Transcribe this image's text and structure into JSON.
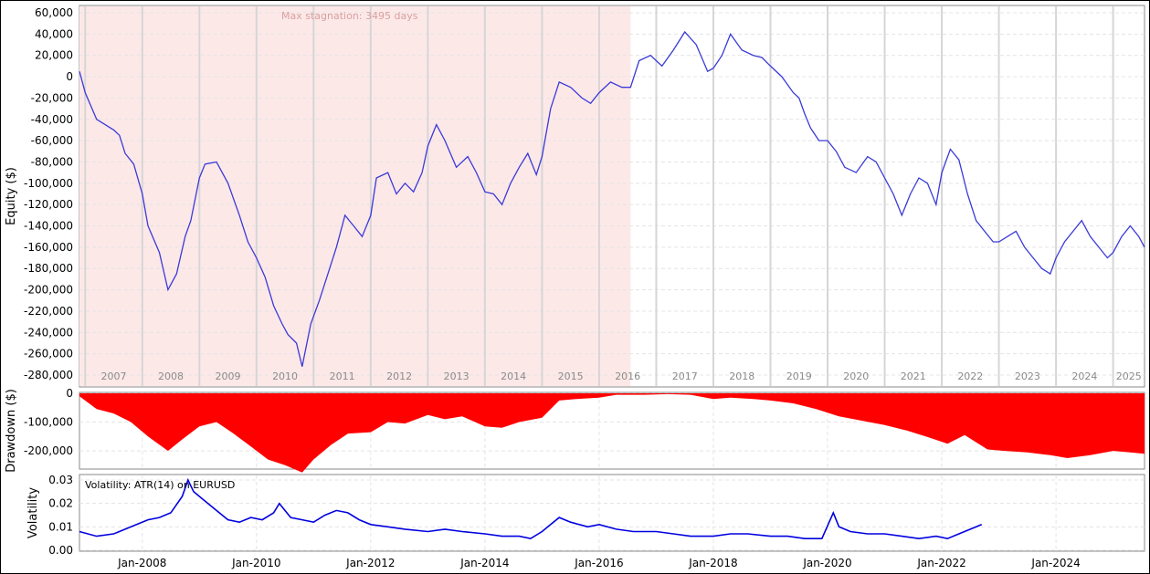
{
  "chart_data": [
    {
      "type": "line",
      "ylabel": "Equity ($)",
      "annotation": "Max stagnation: 3495 days",
      "stagnation": {
        "start": 2006.9,
        "end": 2016.55
      },
      "ylim": [
        -280000,
        60000
      ],
      "yticks": [
        60000,
        40000,
        20000,
        0,
        -20000,
        -40000,
        -60000,
        -80000,
        -100000,
        -120000,
        -140000,
        -160000,
        -180000,
        -200000,
        -220000,
        -240000,
        -260000,
        -280000
      ],
      "ytick_labels": [
        "60,000",
        "40,000",
        "20,000",
        "0",
        "-20,000",
        "-40,000",
        "-60,000",
        "-80,000",
        "-100,000",
        "-120,000",
        "-140,000",
        "-160,000",
        "-180,000",
        "-200,000",
        "-220,000",
        "-240,000",
        "-260,000",
        "-280,000"
      ],
      "year_labels": [
        "2007",
        "2008",
        "2009",
        "2010",
        "2011",
        "2012",
        "2013",
        "2014",
        "2015",
        "2016",
        "2017",
        "2018",
        "2019",
        "2020",
        "2021",
        "2022",
        "2023",
        "2024",
        "2025"
      ],
      "series": [
        {
          "color": "#3a3ad8",
          "x": [
            2006.9,
            2007.0,
            2007.2,
            2007.35,
            2007.5,
            2007.6,
            2007.7,
            2007.85,
            2008.0,
            2008.1,
            2008.3,
            2008.45,
            2008.6,
            2008.75,
            2008.85,
            2009.0,
            2009.1,
            2009.3,
            2009.5,
            2009.7,
            2009.85,
            2010.0,
            2010.15,
            2010.3,
            2010.45,
            2010.55,
            2010.7,
            2010.8,
            2010.95,
            2011.1,
            2011.25,
            2011.4,
            2011.55,
            2011.7,
            2011.85,
            2012.0,
            2012.1,
            2012.3,
            2012.45,
            2012.6,
            2012.75,
            2012.9,
            2013.0,
            2013.15,
            2013.3,
            2013.5,
            2013.7,
            2013.85,
            2014.0,
            2014.15,
            2014.3,
            2014.45,
            2014.6,
            2014.75,
            2014.9,
            2015.0,
            2015.15,
            2015.3,
            2015.5,
            2015.7,
            2015.85,
            2016.0,
            2016.2,
            2016.4,
            2016.55,
            2016.7,
            2016.9,
            2017.1,
            2017.3,
            2017.5,
            2017.7,
            2017.9,
            2018.0,
            2018.15,
            2018.3,
            2018.5,
            2018.7,
            2018.85,
            2019.0,
            2019.2,
            2019.4,
            2019.5,
            2019.6,
            2019.7,
            2019.85,
            2020.0,
            2020.15,
            2020.3,
            2020.5,
            2020.7,
            2020.85,
            2021.0,
            2021.15,
            2021.3,
            2021.45,
            2021.6,
            2021.75,
            2021.9,
            2022.0,
            2022.15,
            2022.3,
            2022.45,
            2022.6,
            2022.75,
            2022.9,
            2023.0,
            2023.15,
            2023.3,
            2023.45,
            2023.6,
            2023.75,
            2023.9,
            2024.0,
            2024.15,
            2024.3,
            2024.45,
            2024.6,
            2024.75,
            2024.9,
            2025.0,
            2025.15,
            2025.3,
            2025.45,
            2025.55
          ],
          "y": [
            5000,
            -15000,
            -40000,
            -45000,
            -50000,
            -55000,
            -72000,
            -82000,
            -110000,
            -140000,
            -165000,
            -200000,
            -185000,
            -150000,
            -135000,
            -95000,
            -82000,
            -80000,
            -100000,
            -130000,
            -155000,
            -170000,
            -188000,
            -215000,
            -232000,
            -242000,
            -250000,
            -272000,
            -232000,
            -210000,
            -185000,
            -160000,
            -130000,
            -140000,
            -150000,
            -130000,
            -95000,
            -90000,
            -110000,
            -100000,
            -108000,
            -90000,
            -65000,
            -45000,
            -60000,
            -85000,
            -75000,
            -90000,
            -108000,
            -110000,
            -120000,
            -100000,
            -85000,
            -72000,
            -92000,
            -75000,
            -30000,
            -5000,
            -10000,
            -20000,
            -25000,
            -15000,
            -5000,
            -10000,
            -10000,
            15000,
            20000,
            10000,
            25000,
            42000,
            30000,
            5000,
            8000,
            20000,
            40000,
            25000,
            20000,
            18000,
            10000,
            0,
            -15000,
            -20000,
            -35000,
            -48000,
            -60000,
            -60000,
            -70000,
            -85000,
            -90000,
            -75000,
            -80000,
            -95000,
            -110000,
            -130000,
            -110000,
            -95000,
            -100000,
            -120000,
            -90000,
            -68000,
            -78000,
            -110000,
            -135000,
            -145000,
            -155000,
            -155000,
            -150000,
            -145000,
            -160000,
            -170000,
            -180000,
            -185000,
            -170000,
            -155000,
            -145000,
            -135000,
            -150000,
            -160000,
            -170000,
            -165000,
            -150000,
            -140000,
            -150000,
            -160000
          ],
          "values_note": ""
        }
      ]
    },
    {
      "type": "area",
      "ylabel": "Drawdown ($)",
      "ylim": [
        -260000,
        0
      ],
      "yticks": [
        0,
        -100000,
        -200000
      ],
      "ytick_labels": [
        "0",
        "-100,000",
        "-200,000"
      ],
      "color": "#ff0000",
      "x": [
        2006.9,
        2007.2,
        2007.5,
        2007.8,
        2008.1,
        2008.45,
        2008.7,
        2009.0,
        2009.3,
        2009.6,
        2009.9,
        2010.2,
        2010.5,
        2010.8,
        2011.0,
        2011.3,
        2011.6,
        2012.0,
        2012.3,
        2012.6,
        2013.0,
        2013.3,
        2013.6,
        2014.0,
        2014.3,
        2014.6,
        2015.0,
        2015.3,
        2015.6,
        2016.0,
        2016.3,
        2016.55,
        2016.8,
        2017.2,
        2017.6,
        2018.0,
        2018.3,
        2018.7,
        2019.0,
        2019.4,
        2019.8,
        2020.2,
        2020.6,
        2021.0,
        2021.4,
        2021.8,
        2022.1,
        2022.4,
        2022.8,
        2023.1,
        2023.5,
        2023.9,
        2024.2,
        2024.6,
        2025.0,
        2025.3,
        2025.55
      ],
      "y": [
        -10000,
        -55000,
        -70000,
        -100000,
        -150000,
        -200000,
        -160000,
        -115000,
        -100000,
        -140000,
        -185000,
        -230000,
        -250000,
        -275000,
        -230000,
        -180000,
        -140000,
        -135000,
        -100000,
        -105000,
        -75000,
        -90000,
        -80000,
        -115000,
        -120000,
        -100000,
        -85000,
        -25000,
        -20000,
        -15000,
        -5000,
        -5000,
        -5000,
        -3000,
        -5000,
        -20000,
        -15000,
        -20000,
        -25000,
        -35000,
        -55000,
        -80000,
        -95000,
        -110000,
        -130000,
        -155000,
        -175000,
        -145000,
        -195000,
        -200000,
        -205000,
        -215000,
        -225000,
        -215000,
        -200000,
        -205000,
        -210000
      ]
    },
    {
      "type": "line",
      "ylabel": "Volatility",
      "label": "Volatility: ATR(14) on EURUSD",
      "ylim": [
        0,
        0.03
      ],
      "yticks": [
        0.03,
        0.02,
        0.01,
        0.0
      ],
      "ytick_labels": [
        "0.03",
        "0.02",
        "0.01",
        "0.00"
      ],
      "xtick_labels": [
        "Jan-2008",
        "Jan-2010",
        "Jan-2012",
        "Jan-2014",
        "Jan-2016",
        "Jan-2018",
        "Jan-2020",
        "Jan-2022",
        "Jan-2024"
      ],
      "xtick_values": [
        2008,
        2010,
        2012,
        2014,
        2016,
        2018,
        2020,
        2022,
        2024
      ],
      "color": "#0000e0",
      "x": [
        2006.9,
        2007.2,
        2007.5,
        2007.7,
        2007.9,
        2008.1,
        2008.3,
        2008.5,
        2008.7,
        2008.8,
        2008.9,
        2009.1,
        2009.3,
        2009.5,
        2009.7,
        2009.9,
        2010.1,
        2010.3,
        2010.4,
        2010.6,
        2010.8,
        2011.0,
        2011.2,
        2011.4,
        2011.6,
        2011.8,
        2012.0,
        2012.3,
        2012.6,
        2013.0,
        2013.3,
        2013.6,
        2014.0,
        2014.3,
        2014.6,
        2014.8,
        2015.0,
        2015.15,
        2015.3,
        2015.5,
        2015.8,
        2016.0,
        2016.3,
        2016.6,
        2017.0,
        2017.3,
        2017.6,
        2018.0,
        2018.3,
        2018.6,
        2019.0,
        2019.3,
        2019.6,
        2019.9,
        2020.1,
        2020.2,
        2020.4,
        2020.7,
        2021.0,
        2021.3,
        2021.6,
        2021.9,
        2022.1,
        2022.3,
        2022.5,
        2022.7
      ],
      "y": [
        0.008,
        0.006,
        0.007,
        0.009,
        0.011,
        0.013,
        0.014,
        0.016,
        0.023,
        0.03,
        0.025,
        0.021,
        0.017,
        0.013,
        0.012,
        0.014,
        0.013,
        0.016,
        0.02,
        0.014,
        0.013,
        0.012,
        0.015,
        0.017,
        0.016,
        0.013,
        0.011,
        0.01,
        0.009,
        0.008,
        0.009,
        0.008,
        0.007,
        0.006,
        0.006,
        0.005,
        0.008,
        0.011,
        0.014,
        0.012,
        0.01,
        0.011,
        0.009,
        0.008,
        0.008,
        0.007,
        0.006,
        0.006,
        0.007,
        0.007,
        0.006,
        0.006,
        0.005,
        0.005,
        0.016,
        0.01,
        0.008,
        0.007,
        0.007,
        0.006,
        0.005,
        0.006,
        0.005,
        0.007,
        0.009,
        0.011
      ]
    }
  ]
}
